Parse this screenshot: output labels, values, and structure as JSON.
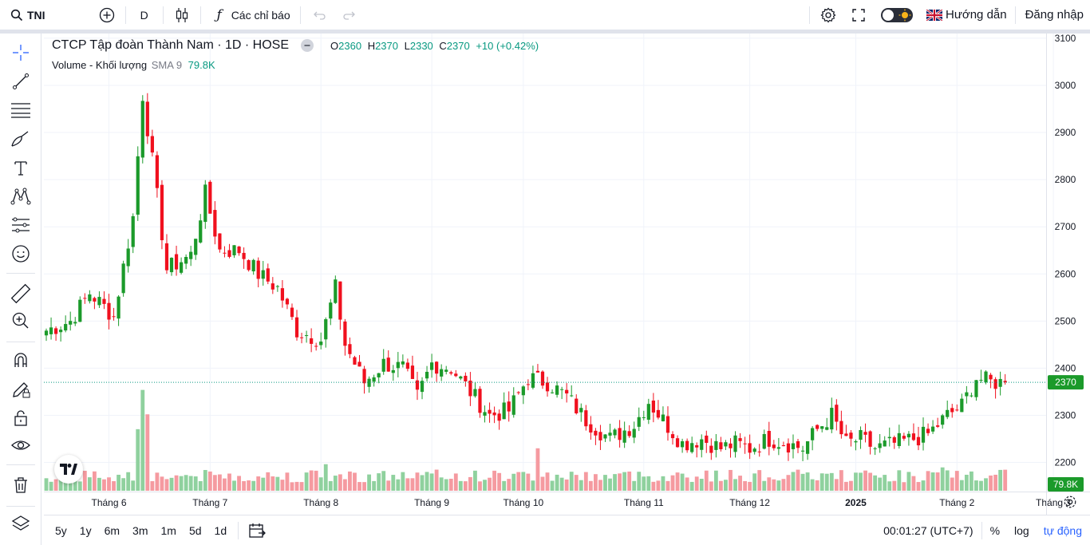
{
  "topbar": {
    "symbol": "TNI",
    "interval": "D",
    "indicators_label": "Các chỉ báo",
    "guide_label": "Hướng dẫn",
    "login_label": "Đăng nhập"
  },
  "legend": {
    "title": "CTCP Tập đoàn Thành Nam · 1D · HOSE",
    "o_label": "O",
    "o": "2360",
    "h_label": "H",
    "h": "2370",
    "l_label": "L",
    "l": "2330",
    "c_label": "C",
    "c": "2370",
    "change": "+10 (+0.42%)",
    "volume_name": "Volume - Khối lượng",
    "sma_label": "SMA 9",
    "volume_value": "79.8K"
  },
  "price_axis": {
    "ticks": [
      "3100",
      "3000",
      "2900",
      "2800",
      "2700",
      "2600",
      "2500",
      "2400",
      "2300",
      "2200"
    ],
    "last_price": "2370",
    "last_volume": "79.8K"
  },
  "time_axis": {
    "labels": [
      "Tháng 6",
      "Tháng 7",
      "Tháng 8",
      "Tháng 9",
      "Tháng 10",
      "Tháng 11",
      "Tháng 12",
      "2025",
      "Tháng 2",
      "Tháng 3"
    ]
  },
  "bottombar": {
    "ranges": [
      "5y",
      "1y",
      "6m",
      "3m",
      "1m",
      "5d",
      "1d"
    ],
    "clock": "00:01:27 (UTC+7)",
    "percent": "%",
    "log": "log",
    "auto": "tự động"
  },
  "colors": {
    "up": "#089981",
    "down": "#f23645",
    "up_candle": "#1b9a2a",
    "down_candle": "#f0101e",
    "vol_up": "#8fd19e",
    "vol_down": "#f59aa0",
    "accent": "#2962ff"
  },
  "chart_data": {
    "type": "candlestick",
    "ylim": [
      2140,
      3110
    ],
    "y_ticks": [
      2200,
      2300,
      2400,
      2500,
      2600,
      2700,
      2800,
      2900,
      3000,
      3100
    ],
    "last_price": 2370,
    "control_points": [
      [
        0,
        2480
      ],
      [
        5,
        2500
      ],
      [
        9,
        2560
      ],
      [
        14,
        2510
      ],
      [
        18,
        2720
      ],
      [
        20,
        2980
      ],
      [
        22,
        2840
      ],
      [
        25,
        2610
      ],
      [
        30,
        2640
      ],
      [
        33,
        2770
      ],
      [
        36,
        2650
      ],
      [
        40,
        2650
      ],
      [
        44,
        2600
      ],
      [
        48,
        2570
      ],
      [
        52,
        2480
      ],
      [
        57,
        2460
      ],
      [
        60,
        2570
      ],
      [
        62,
        2450
      ],
      [
        66,
        2370
      ],
      [
        70,
        2410
      ],
      [
        74,
        2400
      ],
      [
        77,
        2340
      ],
      [
        80,
        2410
      ],
      [
        84,
        2400
      ],
      [
        88,
        2350
      ],
      [
        92,
        2300
      ],
      [
        96,
        2310
      ],
      [
        100,
        2380
      ],
      [
        104,
        2370
      ],
      [
        108,
        2340
      ],
      [
        112,
        2290
      ],
      [
        117,
        2250
      ],
      [
        122,
        2280
      ],
      [
        125,
        2330
      ],
      [
        128,
        2290
      ],
      [
        132,
        2240
      ],
      [
        136,
        2250
      ],
      [
        140,
        2230
      ],
      [
        143,
        2240
      ],
      [
        146,
        2230
      ],
      [
        150,
        2250
      ],
      [
        154,
        2240
      ],
      [
        157,
        2230
      ],
      [
        160,
        2270
      ],
      [
        163,
        2300
      ],
      [
        166,
        2240
      ],
      [
        169,
        2250
      ],
      [
        172,
        2230
      ],
      [
        176,
        2240
      ],
      [
        180,
        2250
      ],
      [
        183,
        2260
      ],
      [
        187,
        2300
      ],
      [
        190,
        2320
      ],
      [
        193,
        2380
      ],
      [
        196,
        2370
      ],
      [
        199,
        2370
      ]
    ]
  }
}
